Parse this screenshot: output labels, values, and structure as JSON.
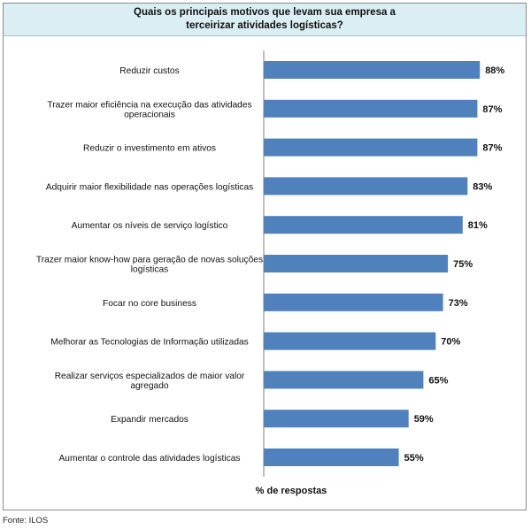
{
  "chart_data": {
    "type": "bar",
    "orientation": "horizontal",
    "title_lines": [
      "Quais os principais motivos que levam sua empresa a",
      "terceirizar atividades logísticas?"
    ],
    "xlabel": "% de respostas",
    "ylabel": "",
    "xlim": [
      0,
      100
    ],
    "grid": false,
    "legend": "none",
    "bar_color": "#4f81bd",
    "title_band_color": "#dbeef4",
    "categories": [
      [
        "Reduzir custos"
      ],
      [
        "Trazer maior eficiência na execução das atividades",
        "operacionais"
      ],
      [
        "Reduzir o investimento em ativos"
      ],
      [
        "Adquirir maior flexibilidade nas operações logísticas"
      ],
      [
        "Aumentar os níveis de serviço logístico"
      ],
      [
        "Trazer maior know-how para geração de novas soluções",
        "logísticas"
      ],
      [
        "Focar no core business"
      ],
      [
        "Melhorar as Tecnologias de Informação utilizadas"
      ],
      [
        "Realizar serviços especializados de maior valor",
        "agregado"
      ],
      [
        "Expandir mercados"
      ],
      [
        "Aumentar o controle das atividades logísticas"
      ]
    ],
    "values": [
      88,
      87,
      87,
      83,
      81,
      75,
      73,
      70,
      65,
      59,
      55
    ],
    "data_labels": [
      "88%",
      "87%",
      "87%",
      "83%",
      "81%",
      "75%",
      "73%",
      "70%",
      "65%",
      "59%",
      "55%"
    ]
  },
  "source_note": "Fonte: ILOS"
}
